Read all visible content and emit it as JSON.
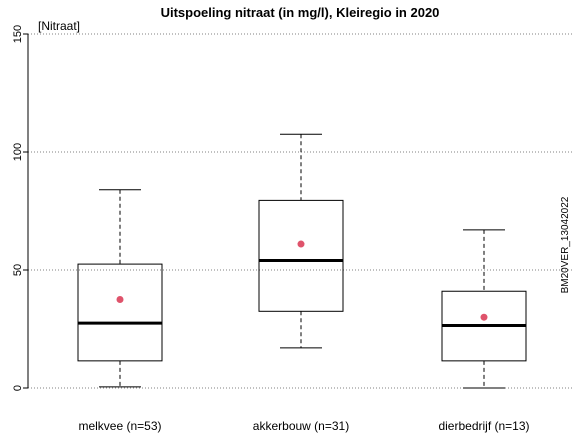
{
  "chart_data": {
    "type": "box",
    "title": "Uitspoeling nitraat (in mg/l),  Kleiregio in 2020",
    "ylabel": "[Nitraat]",
    "side_label": "BM20VER_13042022",
    "ylim": [
      0,
      150
    ],
    "yticks": [
      "0",
      "50",
      "100",
      "150"
    ],
    "grid": "horizontal-dotted",
    "categories": [
      "melkvee (n=53)",
      "akkerbouw (n=31)",
      "dierbedrijf (n=13)"
    ],
    "boxes": [
      {
        "whisker_low": 0.5,
        "q1": 11.5,
        "median": 27.5,
        "q3": 52.5,
        "whisker_high": 84,
        "mean": 37.5
      },
      {
        "whisker_low": 17,
        "q1": 32.5,
        "median": 54,
        "q3": 79.5,
        "whisker_high": 107.5,
        "mean": 61
      },
      {
        "whisker_low": 0,
        "q1": 11.5,
        "median": 26.5,
        "q3": 41,
        "whisker_high": 67,
        "mean": 30
      }
    ],
    "colors": {
      "mean_marker": "#df536b",
      "grid": "#808080",
      "box": "#000000"
    }
  }
}
